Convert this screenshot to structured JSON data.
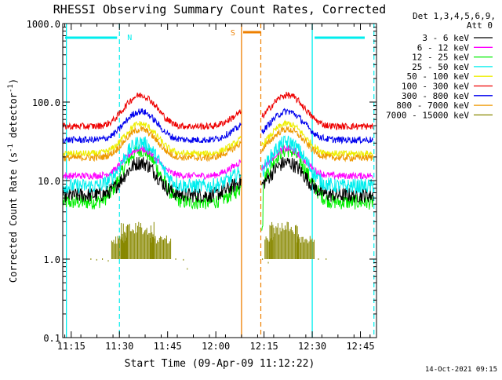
{
  "chart_data": {
    "type": "line",
    "title": "RHESSI Observing Summary Count Rates, Corrected",
    "xlabel": "Start Time (09-Apr-09 11:12:22)",
    "ylabel_prefix": "Corrected Count Rate (s",
    "ylabel_sup1": "-1",
    "ylabel_mid": " detector",
    "ylabel_sup2": "-1",
    "ylabel_suffix": ")",
    "yscale": "log",
    "xlim": [
      11.2061,
      12.8333
    ],
    "ylim": [
      0.1,
      1000
    ],
    "x_ticks": [
      {
        "t": 11.25,
        "label": "11:15"
      },
      {
        "t": 11.5,
        "label": "11:30"
      },
      {
        "t": 11.75,
        "label": "11:45"
      },
      {
        "t": 12.0,
        "label": "12:00"
      },
      {
        "t": 12.25,
        "label": "12:15"
      },
      {
        "t": 12.5,
        "label": "12:30"
      },
      {
        "t": 12.75,
        "label": "12:45"
      }
    ],
    "y_ticks": [
      {
        "v": 1000,
        "label": "1000.0"
      },
      {
        "v": 100,
        "label": "100.0"
      },
      {
        "v": 10,
        "label": "10.0"
      },
      {
        "v": 1,
        "label": "1.0"
      },
      {
        "v": 0.1,
        "label": "0.1"
      }
    ],
    "legend_header_1": "Det 1,3,4,5,6,9,",
    "legend_header_2": "Att 0",
    "legend_position": "right",
    "series": [
      {
        "name": "3 - 6 keV",
        "color": "#000000",
        "base": 6.5,
        "amp": 2.6
      },
      {
        "name": "6 - 12 keV",
        "color": "#ff00ff",
        "base": 11.5,
        "amp": 2.2
      },
      {
        "name": "12 - 25 keV",
        "color": "#00ee00",
        "base": 5.3,
        "amp": 4.6
      },
      {
        "name": "25 - 50 keV",
        "color": "#00eeee",
        "base": 8.5,
        "amp": 3.6
      },
      {
        "name": "50 - 100 keV",
        "color": "#eeee00",
        "base": 22,
        "amp": 2.4
      },
      {
        "name": "100 - 300 keV",
        "color": "#ee0000",
        "base": 49,
        "amp": 2.5
      },
      {
        "name": "300 - 800 keV",
        "color": "#0000ee",
        "base": 33,
        "amp": 2.3
      },
      {
        "name": "800 - 7000 keV",
        "color": "#ee9900",
        "base": 19.5,
        "amp": 2.3
      },
      {
        "name": "7000 - 15000 keV",
        "color": "#888800",
        "base": null,
        "amp": null
      }
    ],
    "flags": {
      "N_label": "N",
      "S_label": "S",
      "night_color": "#00eeee",
      "saa_color": "#ee8000",
      "night_intervals": [
        [
          11.2061,
          11.5
        ],
        [
          12.5,
          12.8333
        ]
      ],
      "saa_interval": [
        12.1333,
        12.2333
      ],
      "solid_cyan_lines": [
        11.225,
        12.5
      ],
      "dashed_cyan_lines": [
        11.5,
        12.82
      ],
      "solid_orange_line": 12.1333,
      "dashed_orange_line": 12.2333
    },
    "data_gap": [
      12.1333,
      12.2333
    ],
    "peaks": [
      11.61,
      12.37
    ]
  },
  "footer_date": "14-Oct-2021 09:15"
}
